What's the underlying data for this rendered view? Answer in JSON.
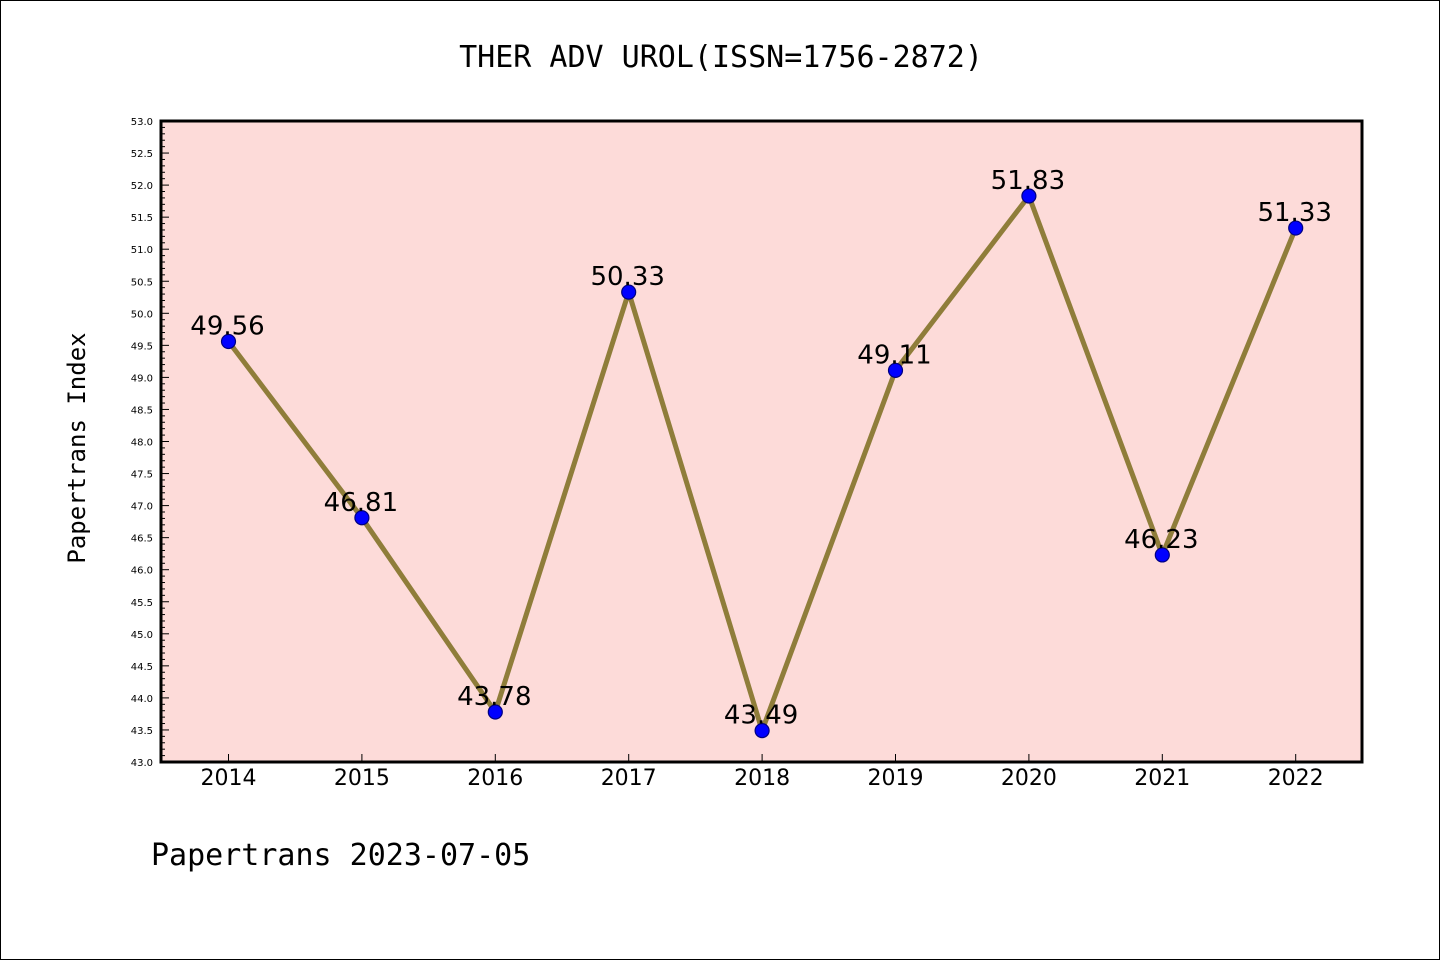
{
  "chart_data": {
    "type": "line",
    "title": "THER ADV UROL(ISSN=1756-2872)",
    "ylabel": "Papertrans Index",
    "xlabel": "",
    "categories": [
      "2014",
      "2015",
      "2016",
      "2017",
      "2018",
      "2019",
      "2020",
      "2021",
      "2022"
    ],
    "values": [
      49.56,
      46.81,
      43.78,
      50.33,
      43.49,
      49.11,
      51.83,
      46.23,
      51.33
    ],
    "data_labels": [
      "49.56",
      "46.81",
      "43.78",
      "50.33",
      "43.49",
      "49.11",
      "51.83",
      "46.23",
      "51.33"
    ],
    "ylim": [
      43.0,
      53.0
    ],
    "yticks": [
      "43.0",
      "43.5",
      "44.0",
      "44.5",
      "45.0",
      "45.5",
      "46.0",
      "46.5",
      "47.0",
      "47.5",
      "48.0",
      "48.5",
      "49.0",
      "49.5",
      "50.0",
      "50.5",
      "51.0",
      "51.5",
      "52.0",
      "52.5",
      "53.0"
    ],
    "grid": false,
    "colors": {
      "plot_background": "#fddbd9",
      "line": "#8f7d3a",
      "marker": "#0000ff",
      "marker_edge": "#000080"
    },
    "footer": "Papertrans 2023-07-05"
  }
}
